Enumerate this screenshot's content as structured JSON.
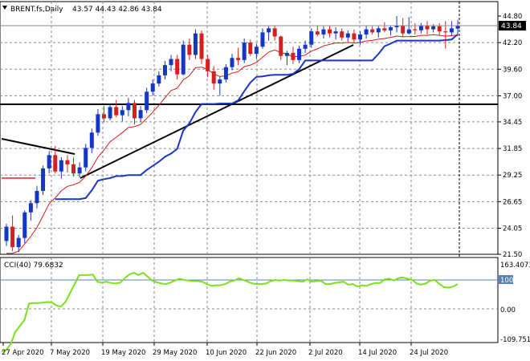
{
  "header": {
    "symbol": "BRENT.fs,Daily",
    "ohlc": "43.57 44.43 42.86 43.84"
  },
  "price_label": "43.84",
  "indicator": {
    "label": "CCI(40) 79.6832",
    "scale_labels": [
      "163.4073",
      "100",
      "0.00",
      "-109.751"
    ],
    "level_label": "100"
  },
  "colors": {
    "up": "#1535c6",
    "down": "#d62020",
    "fast_ma": "#d61a1a",
    "kijun": "#1a35c8",
    "trend": "#000000",
    "cci": "#7be11a",
    "grid": "#8a8a8a"
  },
  "chart_data": {
    "type": "candlestick",
    "yticks": [
      "44.80",
      "42.20",
      "39.60",
      "37.00",
      "34.45",
      "31.85",
      "29.25",
      "26.65",
      "24.05",
      "21.50"
    ],
    "xticks": [
      "27 Apr 2020",
      "7 May 2020",
      "19 May 2020",
      "29 May 2020",
      "10 Jun 2020",
      "22 Jun 2020",
      "2 Jul 2020",
      "14 Jul 2020",
      "24 Jul 2020"
    ],
    "ylim": [
      21.5,
      44.8
    ],
    "candles": [
      [
        22.8,
        24.5,
        22.3,
        24.2
      ],
      [
        24.2,
        25.3,
        21.8,
        22.2
      ],
      [
        22.2,
        23.4,
        21.7,
        23.1
      ],
      [
        23.1,
        25.8,
        22.6,
        25.6
      ],
      [
        25.6,
        26.8,
        24.8,
        26.5
      ],
      [
        26.5,
        28.2,
        26.0,
        27.7
      ],
      [
        27.7,
        30.2,
        27.3,
        29.9
      ],
      [
        29.9,
        31.6,
        29.4,
        31.2
      ],
      [
        31.2,
        32.1,
        29.4,
        29.6
      ],
      [
        29.6,
        31.0,
        28.9,
        30.7
      ],
      [
        30.7,
        31.2,
        29.5,
        30.3
      ],
      [
        30.3,
        31.0,
        29.1,
        29.4
      ],
      [
        29.4,
        30.5,
        29.0,
        30.0
      ],
      [
        30.0,
        32.3,
        29.6,
        31.9
      ],
      [
        31.9,
        33.8,
        31.4,
        33.4
      ],
      [
        33.4,
        35.7,
        33.1,
        35.2
      ],
      [
        35.2,
        36.0,
        34.4,
        34.8
      ],
      [
        34.8,
        36.2,
        34.6,
        35.9
      ],
      [
        35.9,
        36.6,
        34.9,
        35.1
      ],
      [
        35.1,
        36.0,
        34.5,
        35.6
      ],
      [
        35.6,
        36.8,
        35.0,
        36.3
      ],
      [
        36.3,
        36.6,
        34.2,
        34.8
      ],
      [
        34.8,
        36.0,
        34.4,
        35.6
      ],
      [
        35.6,
        37.8,
        35.3,
        37.4
      ],
      [
        37.4,
        38.6,
        37.0,
        38.2
      ],
      [
        38.2,
        39.4,
        37.9,
        39.0
      ],
      [
        39.0,
        40.4,
        38.6,
        40.0
      ],
      [
        40.0,
        41.0,
        39.4,
        40.6
      ],
      [
        40.6,
        41.0,
        38.6,
        39.1
      ],
      [
        39.1,
        42.4,
        39.0,
        42.0
      ],
      [
        42.0,
        42.6,
        40.5,
        41.0
      ],
      [
        41.0,
        43.5,
        40.6,
        43.1
      ],
      [
        43.1,
        43.4,
        40.1,
        40.6
      ],
      [
        40.6,
        41.0,
        38.8,
        39.4
      ],
      [
        39.4,
        39.9,
        37.6,
        38.2
      ],
      [
        38.2,
        38.9,
        37.0,
        38.6
      ],
      [
        38.6,
        40.1,
        38.3,
        39.8
      ],
      [
        39.8,
        41.1,
        39.5,
        40.7
      ],
      [
        40.7,
        41.7,
        40.0,
        40.5
      ],
      [
        40.5,
        42.6,
        40.2,
        42.2
      ],
      [
        42.2,
        42.5,
        40.9,
        41.1
      ],
      [
        41.1,
        42.1,
        40.6,
        41.8
      ],
      [
        41.8,
        43.6,
        41.6,
        43.2
      ],
      [
        43.2,
        43.8,
        42.4,
        43.6
      ],
      [
        43.6,
        43.9,
        42.4,
        42.8
      ],
      [
        42.8,
        42.9,
        40.5,
        40.9
      ],
      [
        40.9,
        41.4,
        40.0,
        41.2
      ],
      [
        41.2,
        41.8,
        40.1,
        40.5
      ],
      [
        40.5,
        41.9,
        40.2,
        41.6
      ],
      [
        41.6,
        42.4,
        41.2,
        42.0
      ],
      [
        42.0,
        43.6,
        41.7,
        43.3
      ],
      [
        43.3,
        43.9,
        42.8,
        43.0
      ],
      [
        43.0,
        43.8,
        42.6,
        43.5
      ],
      [
        43.5,
        43.9,
        42.7,
        43.1
      ],
      [
        43.1,
        43.7,
        42.5,
        43.3
      ],
      [
        43.3,
        43.6,
        42.4,
        42.7
      ],
      [
        42.7,
        43.4,
        42.3,
        43.1
      ],
      [
        43.1,
        43.5,
        42.2,
        42.5
      ],
      [
        42.5,
        43.3,
        42.0,
        43.0
      ],
      [
        43.0,
        43.9,
        42.6,
        43.5
      ],
      [
        43.5,
        43.8,
        43.0,
        43.2
      ],
      [
        43.2,
        43.8,
        42.7,
        43.6
      ],
      [
        43.6,
        44.2,
        43.2,
        43.4
      ],
      [
        43.4,
        43.9,
        42.9,
        43.7
      ],
      [
        43.7,
        44.8,
        43.2,
        43.9
      ],
      [
        43.9,
        44.6,
        42.8,
        43.1
      ],
      [
        43.1,
        44.7,
        43.0,
        43.5
      ],
      [
        43.5,
        44.1,
        43.0,
        43.4
      ],
      [
        43.4,
        44.1,
        43.1,
        43.9
      ],
      [
        43.9,
        44.3,
        43.0,
        43.5
      ],
      [
        43.5,
        44.0,
        43.2,
        43.8
      ],
      [
        43.8,
        44.1,
        42.9,
        43.3
      ],
      [
        43.3,
        44.3,
        41.6,
        43.2
      ],
      [
        43.2,
        44.3,
        42.9,
        43.6
      ],
      [
        43.57,
        44.43,
        42.86,
        43.84
      ]
    ],
    "cci": [
      -145,
      -140,
      -120,
      -80,
      -60,
      -40,
      15,
      17,
      17,
      18,
      20,
      19,
      9,
      5,
      20,
      50,
      80,
      110,
      110,
      110,
      112,
      88,
      85,
      88,
      84,
      82,
      85,
      100,
      112,
      118,
      110,
      118,
      105,
      92,
      86,
      82,
      80,
      85,
      92,
      98,
      94,
      92,
      90,
      90,
      88,
      80,
      74,
      76,
      76,
      80,
      88,
      92,
      100,
      94,
      88,
      82,
      80,
      80,
      82,
      90,
      94,
      92,
      94,
      92,
      92,
      90,
      88,
      96,
      88,
      90,
      92,
      80,
      80,
      84,
      86,
      88,
      78,
      80,
      72,
      76,
      74,
      80,
      84,
      84,
      96,
      98,
      92,
      100,
      102,
      98,
      94,
      82,
      78,
      82,
      92,
      94,
      80,
      70,
      68,
      72,
      80
    ],
    "cci_ylim": [
      -109.751,
      163.4073
    ]
  }
}
